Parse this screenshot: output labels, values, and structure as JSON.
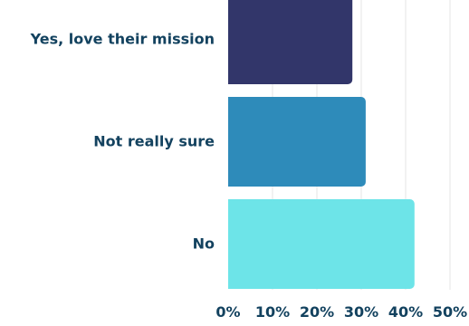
{
  "chart_data": {
    "type": "bar",
    "orientation": "horizontal",
    "categories": [
      "Yes, love their mission",
      "Not really sure",
      "No"
    ],
    "values": [
      28,
      31,
      42
    ],
    "xlim": [
      0,
      50
    ],
    "x_ticks": [
      "0%",
      "10%",
      "20%",
      "30%",
      "40%",
      "50%"
    ],
    "colors": [
      "#32366a",
      "#2e8bba",
      "#6de4e8"
    ],
    "label_color": "#13425f",
    "grid": true,
    "gridline_color": "#e6e6e6"
  }
}
